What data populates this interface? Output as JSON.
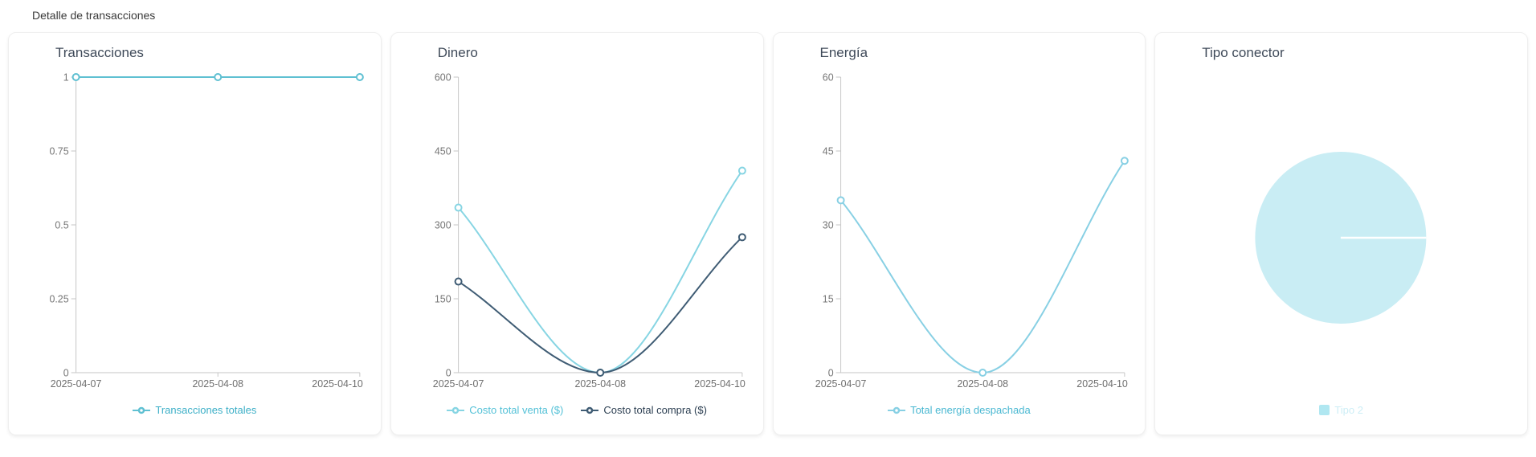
{
  "header": {
    "title": "Detalle de transacciones"
  },
  "style": {
    "axis_line": "#c6c6c6",
    "tick_label": "#757575",
    "x_label": "#6e6e6e",
    "marker_fill": "#ffffff"
  },
  "chart_data": [
    {
      "type": "line",
      "title": "Transacciones",
      "categories": [
        "2025-04-07",
        "2025-04-08",
        "2025-04-10"
      ],
      "xlabel": "",
      "ylabel": "",
      "ylim": [
        0,
        1
      ],
      "yticks": [
        0,
        0.25,
        0.5,
        0.75,
        1
      ],
      "grid": false,
      "legend_position": "bottom",
      "series": [
        {
          "name": "Transacciones totales",
          "color": "#5fc0d2",
          "text_color": "#3cafc7",
          "values": [
            1,
            1,
            1
          ]
        }
      ]
    },
    {
      "type": "line",
      "title": "Dinero",
      "categories": [
        "2025-04-07",
        "2025-04-08",
        "2025-04-10"
      ],
      "xlabel": "",
      "ylabel": "",
      "ylim": [
        0,
        600
      ],
      "yticks": [
        0,
        150,
        300,
        450,
        600
      ],
      "grid": false,
      "legend_position": "bottom",
      "series": [
        {
          "name": "Costo total venta ($)",
          "color": "#87d5e3",
          "text_color": "#53c1d7",
          "values": [
            335,
            0,
            410
          ]
        },
        {
          "name": "Costo total compra ($)",
          "color": "#3f5c74",
          "text_color": "#2c3f52",
          "values": [
            185,
            0,
            275
          ]
        }
      ]
    },
    {
      "type": "line",
      "title": "Energía",
      "categories": [
        "2025-04-07",
        "2025-04-08",
        "2025-04-10"
      ],
      "xlabel": "",
      "ylabel": "",
      "ylim": [
        0,
        60
      ],
      "yticks": [
        0,
        15,
        30,
        45,
        60
      ],
      "grid": false,
      "legend_position": "bottom",
      "series": [
        {
          "name": "Total energía despachada",
          "color": "#88d0e4",
          "text_color": "#4ab8d2",
          "values": [
            35,
            0,
            43
          ]
        }
      ]
    },
    {
      "type": "pie",
      "title": "Tipo conector",
      "legend_position": "bottom",
      "slices": [
        {
          "name": "Tipo 2",
          "value": 100,
          "color": "#c9edf4",
          "legend_color": "#b0e7f1",
          "text_color": "#cdeef6"
        }
      ]
    }
  ]
}
